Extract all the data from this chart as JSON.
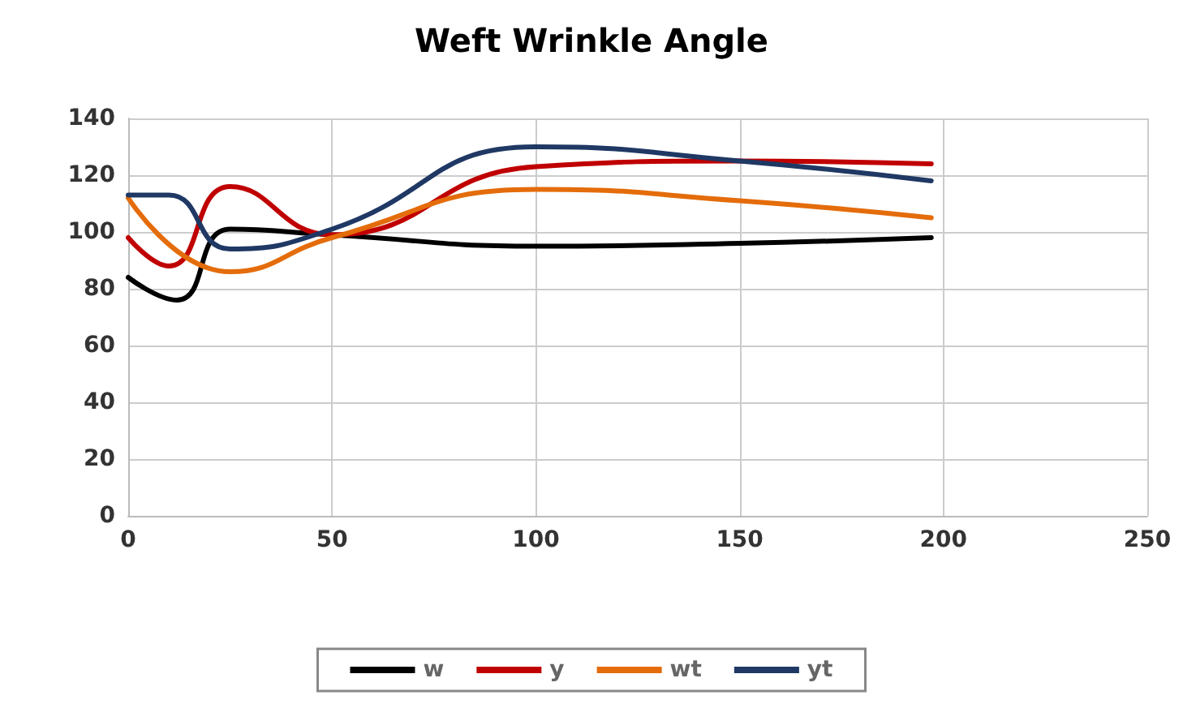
{
  "chart_data": {
    "type": "line",
    "title": "Weft Wrinkle Angle",
    "xlim": [
      0,
      250
    ],
    "xticks": [
      0,
      50,
      100,
      150,
      200,
      250
    ],
    "ylim": [
      0,
      140
    ],
    "yticks": [
      0,
      20,
      40,
      60,
      80,
      100,
      120,
      140
    ],
    "grid": true,
    "legend": "bottom",
    "marker": "none",
    "line_style": "solid",
    "series": [
      {
        "name": "w",
        "color": "#000000",
        "x": [
          0,
          12,
          25,
          50,
          100,
          150,
          197
        ],
        "values": [
          84,
          76,
          101,
          99,
          95,
          96,
          98
        ]
      },
      {
        "name": "y",
        "color": "#c00000",
        "x": [
          0,
          10,
          25,
          50,
          100,
          150,
          197
        ],
        "values": [
          98,
          88,
          116,
          99,
          123,
          125,
          124
        ]
      },
      {
        "name": "wt",
        "color": "#e46c0a",
        "x": [
          0,
          25,
          50,
          100,
          150,
          197
        ],
        "values": [
          112,
          86,
          98,
          115,
          111,
          105
        ]
      },
      {
        "name": "yt",
        "color": "#1f3864",
        "x": [
          0,
          10,
          25,
          50,
          100,
          150,
          197
        ],
        "values": [
          113,
          113,
          94,
          101,
          130,
          125,
          118
        ]
      }
    ]
  }
}
